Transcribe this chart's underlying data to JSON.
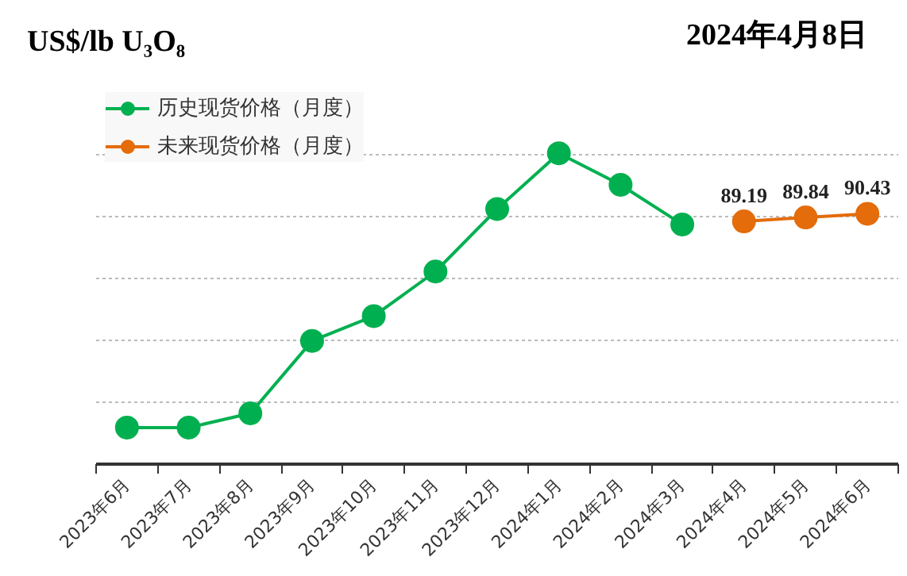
{
  "chart_data": {
    "type": "line",
    "title": "US$/lb U₃O₈",
    "subtitle": "2024年4月8日",
    "categories": [
      "2023年6月",
      "2023年7月",
      "2023年8月",
      "2023年9月",
      "2023年10月",
      "2023年11月",
      "2023年12月",
      "2024年1月",
      "2024年2月",
      "2024年3月",
      "2024年4月",
      "2024年5月",
      "2024年6月"
    ],
    "series": [
      {
        "name": "历史现货价格（月度）",
        "color": "#00b050",
        "values": [
          55.9,
          55.9,
          58.2,
          69.9,
          73.9,
          81.1,
          91.2,
          100.2,
          95.1,
          88.7,
          null,
          null,
          null
        ]
      },
      {
        "name": "未来现货价格（月度）",
        "color": "#e46c0a",
        "values": [
          null,
          null,
          null,
          null,
          null,
          null,
          null,
          null,
          null,
          null,
          89.19,
          89.84,
          90.43
        ],
        "value_labels": [
          null,
          null,
          null,
          null,
          null,
          null,
          null,
          null,
          null,
          null,
          "89.19",
          "89.84",
          "90.43"
        ]
      }
    ],
    "yticks": [
      {
        "value": 50,
        "label": null
      },
      {
        "value": 60,
        "label": null
      },
      {
        "value": 70,
        "label": null
      },
      {
        "value": 80,
        "label": null
      },
      {
        "value": 90,
        "label": null
      },
      {
        "value": 100,
        "label": null
      }
    ],
    "grid": "y",
    "legend": "top left",
    "marker": "circle",
    "line_style": "solid"
  }
}
